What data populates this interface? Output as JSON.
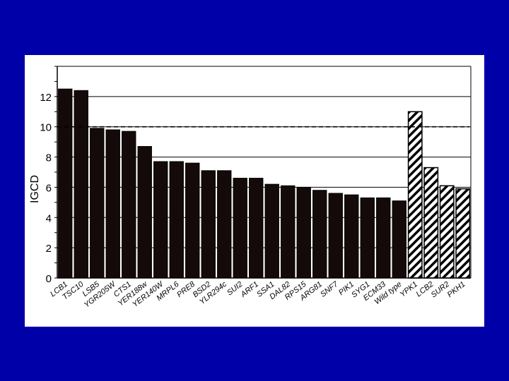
{
  "chart_data": {
    "type": "bar",
    "title": "",
    "xlabel": "",
    "ylabel": "IGCD",
    "ylim": [
      0,
      14
    ],
    "yticks": [
      0,
      2,
      4,
      6,
      8,
      10,
      12
    ],
    "reference_line": 10,
    "grid": true,
    "categories": [
      "LCB1",
      "TSC10",
      "LSB5",
      "YGR205W",
      "CTS1",
      "YER188w",
      "YER140W",
      "MRPL6",
      "PRE8",
      "BSD2",
      "YLR294c",
      "SUI2",
      "ARF1",
      "SSA1",
      "DAL82",
      "RPS15",
      "ARG81",
      "SNF7",
      "PIK1",
      "SYG1",
      "ECM33",
      "Wild type",
      "YPK1",
      "LCB2",
      "SUR2",
      "PKH1"
    ],
    "values": [
      12.5,
      12.4,
      9.9,
      9.8,
      9.7,
      8.7,
      7.7,
      7.7,
      7.6,
      7.1,
      7.1,
      6.6,
      6.6,
      6.2,
      6.1,
      6.0,
      5.8,
      5.6,
      5.5,
      5.3,
      5.3,
      5.1,
      11.0,
      7.3,
      6.1,
      5.9
    ],
    "bar_fill": [
      "solid",
      "solid",
      "solid",
      "solid",
      "solid",
      "solid",
      "solid",
      "solid",
      "solid",
      "solid",
      "solid",
      "solid",
      "solid",
      "solid",
      "solid",
      "solid",
      "solid",
      "solid",
      "solid",
      "solid",
      "solid",
      "solid",
      "hatched",
      "hatched",
      "hatched",
      "hatched"
    ],
    "colors": {
      "background": "#0000a8",
      "panel": "#ffffff",
      "bar": "#150a0a",
      "grid": "#000000"
    }
  }
}
